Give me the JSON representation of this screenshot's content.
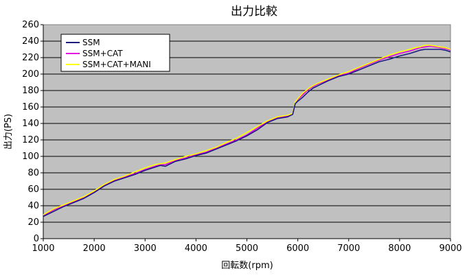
{
  "chart_data": {
    "type": "line",
    "title": "出力比較",
    "xlabel": "回転数(rpm)",
    "ylabel": "出力(PS)",
    "xlim": [
      1000,
      9000
    ],
    "ylim": [
      0,
      260
    ],
    "xticks": [
      1000,
      2000,
      3000,
      4000,
      5000,
      6000,
      7000,
      8000,
      9000
    ],
    "yticks": [
      0,
      20,
      40,
      60,
      80,
      100,
      120,
      140,
      160,
      180,
      200,
      220,
      240,
      260
    ],
    "grid": "horizontal",
    "legend_position": "top-left",
    "colors": {
      "plot_background": "#c0c0c0",
      "gridline": "#000000"
    },
    "series": [
      {
        "name": "SSM",
        "color": "#1a1a80",
        "x": [
          1000,
          1200,
          1400,
          1600,
          1800,
          2000,
          2200,
          2400,
          2600,
          2800,
          3000,
          3200,
          3300,
          3400,
          3600,
          3800,
          4000,
          4200,
          4400,
          4600,
          4800,
          5000,
          5200,
          5400,
          5600,
          5800,
          5900,
          5950,
          6000,
          6100,
          6200,
          6300,
          6400,
          6600,
          6800,
          7000,
          7200,
          7400,
          7600,
          7800,
          8000,
          8200,
          8300,
          8400,
          8500,
          8600,
          8700,
          8800,
          8900,
          9000
        ],
        "values": [
          27,
          33,
          39,
          44,
          49,
          56,
          64,
          70,
          74,
          78,
          83,
          87,
          89,
          88,
          94,
          97,
          101,
          104,
          109,
          114,
          119,
          125,
          132,
          141,
          146,
          148,
          151,
          164,
          167,
          172,
          178,
          183,
          186,
          192,
          197,
          200,
          205,
          210,
          215,
          218,
          222,
          225,
          227,
          229,
          230,
          230,
          230,
          230,
          229,
          227
        ]
      },
      {
        "name": "SSM+CAT",
        "color": "#e000e0",
        "x": [
          1000,
          1200,
          1400,
          1600,
          1800,
          2000,
          2200,
          2400,
          2600,
          2800,
          3000,
          3200,
          3300,
          3400,
          3600,
          3800,
          4000,
          4200,
          4400,
          4600,
          4800,
          5000,
          5200,
          5400,
          5600,
          5800,
          5900,
          5950,
          6000,
          6100,
          6200,
          6300,
          6400,
          6600,
          6800,
          7000,
          7200,
          7400,
          7600,
          7800,
          8000,
          8200,
          8300,
          8400,
          8500,
          8600,
          8700,
          8800,
          8900,
          9000
        ],
        "values": [
          28,
          35,
          40,
          45,
          50,
          57,
          65,
          71,
          75,
          79,
          84,
          88,
          90,
          90,
          95,
          98,
          102,
          105,
          110,
          115,
          120,
          126,
          134,
          142,
          147,
          149,
          151,
          165,
          169,
          175,
          181,
          185,
          188,
          193,
          198,
          201,
          207,
          212,
          217,
          221,
          225,
          228,
          230,
          232,
          233,
          234,
          233,
          232,
          231,
          229
        ]
      },
      {
        "name": "SSM+CAT+MANI",
        "color": "#ffff00",
        "x": [
          1000,
          1200,
          1400,
          1600,
          1800,
          2000,
          2200,
          2400,
          2600,
          2800,
          3000,
          3200,
          3300,
          3400,
          3600,
          3800,
          4000,
          4200,
          4400,
          4600,
          4800,
          5000,
          5200,
          5400,
          5600,
          5800,
          5900,
          5950,
          6000,
          6100,
          6200,
          6300,
          6400,
          6600,
          6800,
          7000,
          7200,
          7400,
          7600,
          7800,
          8000,
          8200,
          8300,
          8400,
          8500,
          8600,
          8700,
          8800,
          8900,
          9000
        ],
        "values": [
          29,
          36,
          41,
          46,
          51,
          58,
          66,
          72,
          76,
          81,
          86,
          90,
          91,
          92,
          96,
          100,
          103,
          107,
          111,
          117,
          122,
          129,
          136,
          143,
          148,
          150,
          152,
          166,
          170,
          177,
          182,
          186,
          189,
          194,
          199,
          203,
          208,
          213,
          218,
          223,
          227,
          230,
          232,
          233,
          235,
          235,
          234,
          233,
          232,
          230
        ]
      }
    ]
  }
}
